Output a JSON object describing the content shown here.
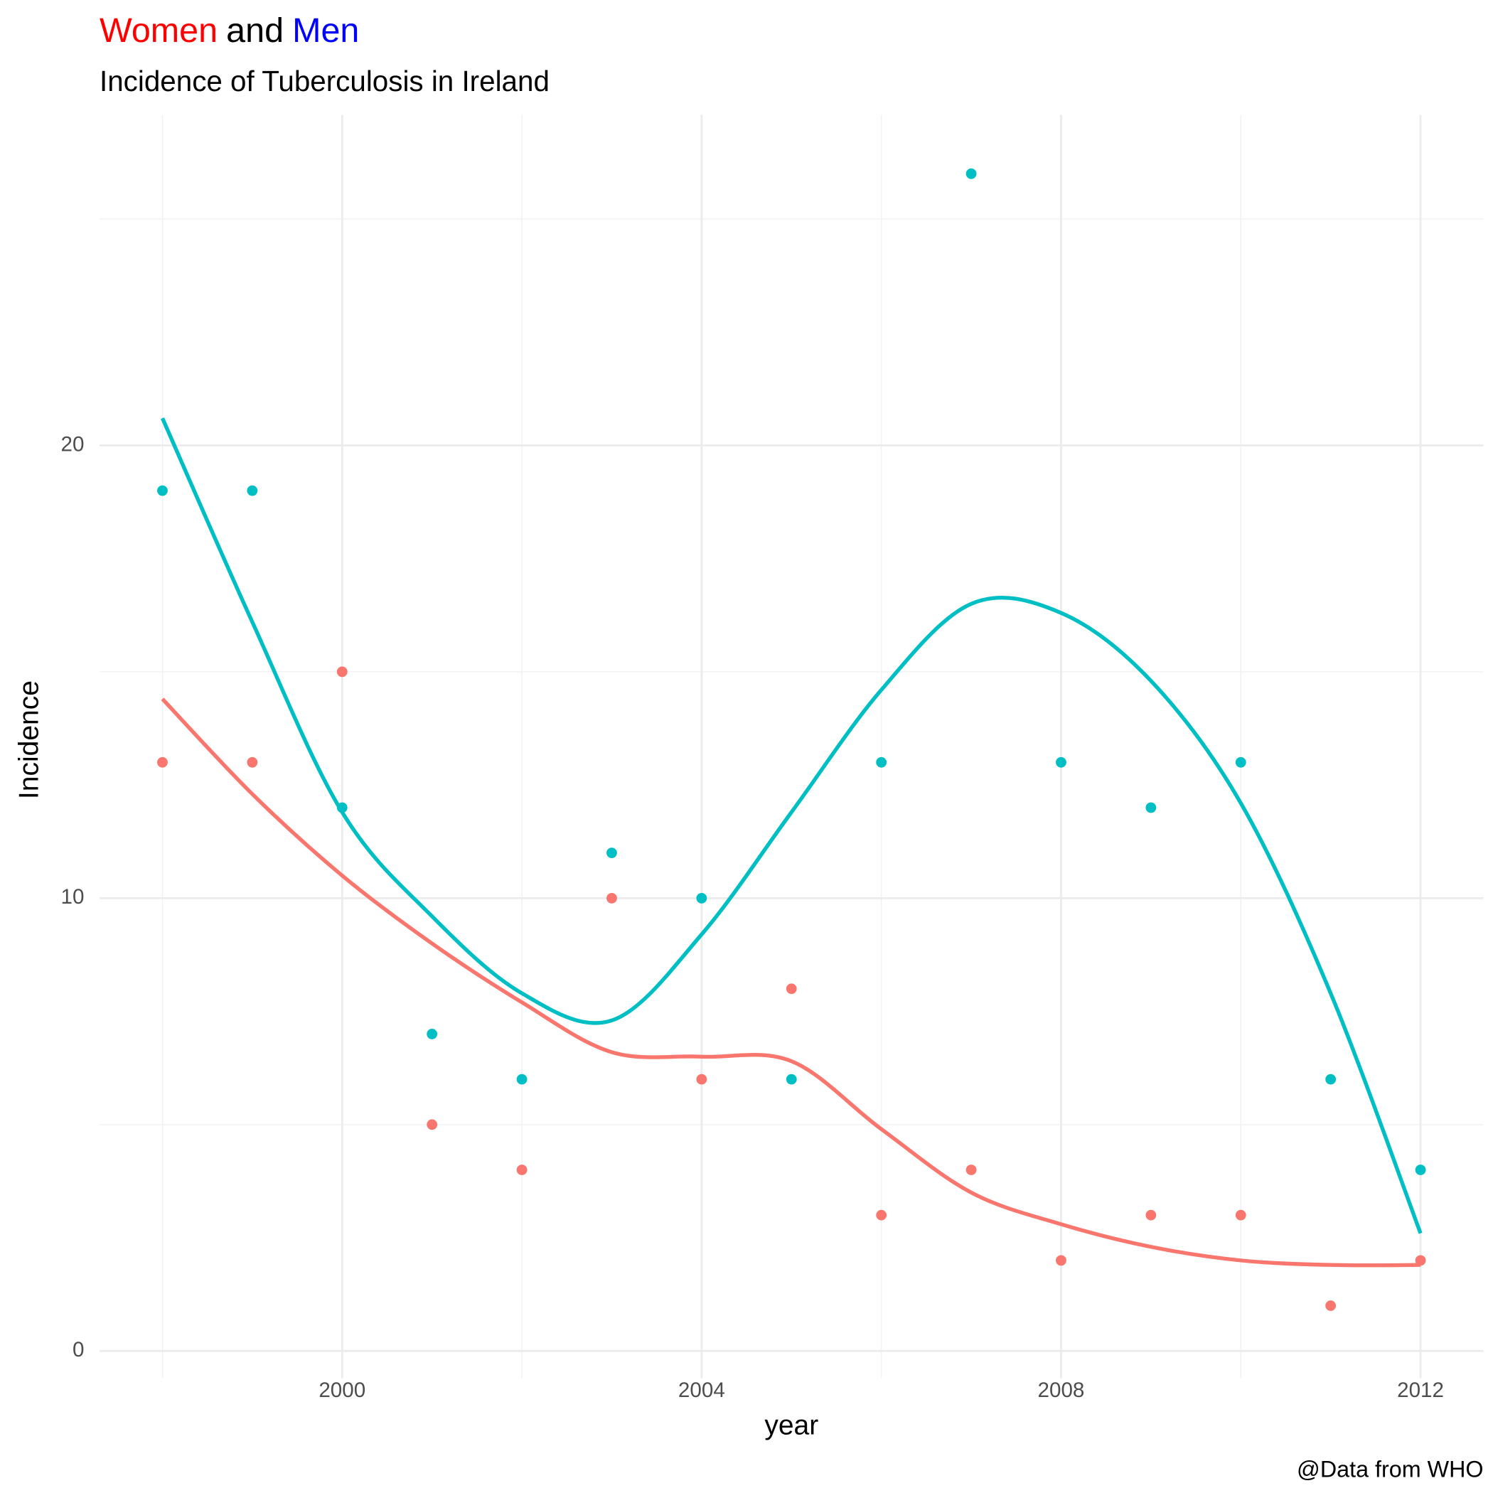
{
  "chart_data": {
    "type": "scatter",
    "title_parts": [
      {
        "text": "Women",
        "color": "#ff0000"
      },
      {
        "text": "and",
        "color": "#000000"
      },
      {
        "text": "Men",
        "color": "#0000ff"
      }
    ],
    "subtitle": "Incidence of Tuberculosis in Ireland",
    "x_label": "year",
    "y_label": "Incidence",
    "caption": "@Data from WHO",
    "x": [
      1998,
      1999,
      2000,
      2001,
      2002,
      2003,
      2004,
      2005,
      2006,
      2007,
      2008,
      2009,
      2010,
      2011,
      2012
    ],
    "series": [
      {
        "name": "Women",
        "color": "#F8766D",
        "values": [
          13,
          13,
          15,
          5,
          4,
          10,
          6,
          8,
          3,
          4,
          2,
          3,
          3,
          1,
          2
        ],
        "smooth": [
          14.4,
          12.3,
          10.5,
          9.0,
          7.7,
          6.6,
          6.5,
          6.4,
          4.9,
          3.5,
          2.8,
          2.3,
          2.0,
          1.9,
          1.9
        ]
      },
      {
        "name": "Men",
        "color": "#00BFC4",
        "values": [
          19,
          19,
          12,
          7,
          6,
          11,
          10,
          6,
          13,
          26,
          13,
          12,
          13,
          6,
          4
        ],
        "smooth": [
          20.6,
          16.1,
          11.9,
          9.6,
          7.9,
          7.3,
          9.2,
          11.9,
          14.6,
          16.5,
          16.3,
          14.8,
          12.1,
          7.9,
          2.6
        ]
      }
    ],
    "xlim": [
      1997.3,
      2012.7
    ],
    "xticks": [
      2000,
      2004,
      2008,
      2012
    ],
    "xminor": [
      1998,
      2002,
      2006,
      2010
    ],
    "ylim": [
      -0.6,
      27.3
    ],
    "yticks": [
      0,
      10,
      20
    ],
    "yminor": [
      5,
      15,
      25
    ],
    "grid": true
  }
}
